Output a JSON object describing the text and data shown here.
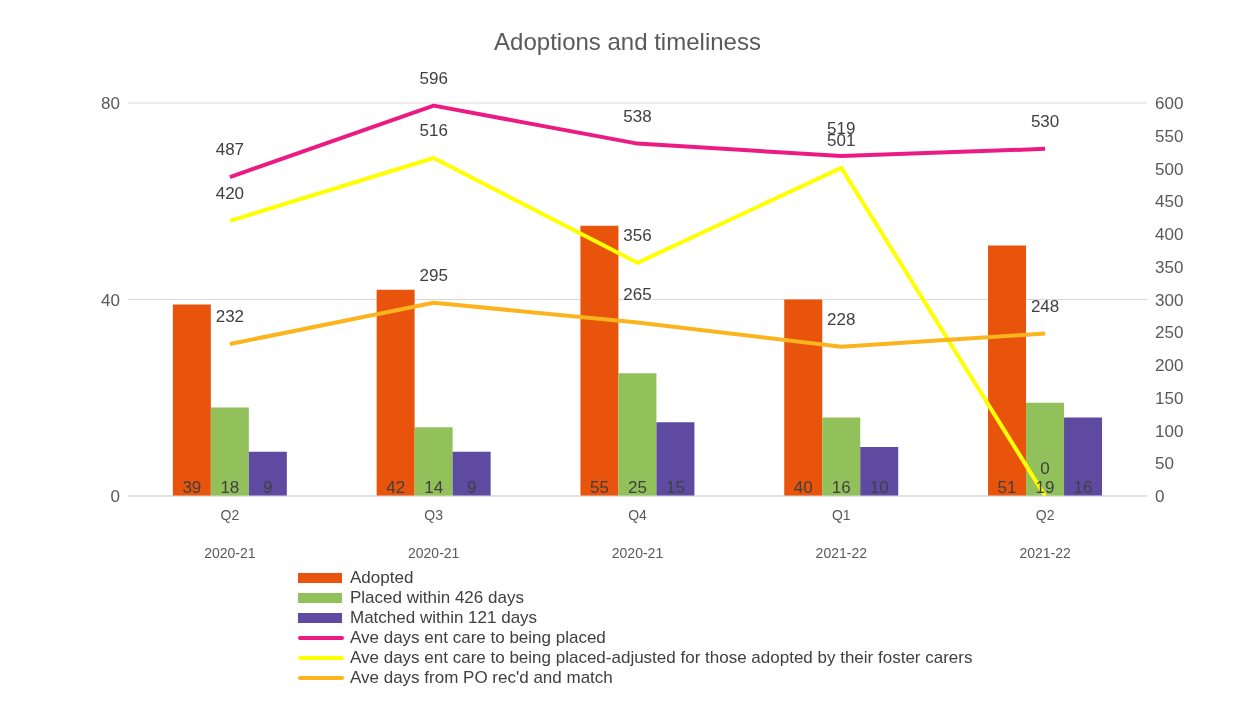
{
  "chart_data": {
    "type": "bar",
    "title": "Adoptions and timeliness",
    "categories": [
      "Q2 2020-21",
      "Q3 2020-21",
      "Q4 2020-21",
      "Q1 2021-22",
      "Q2 2021-22"
    ],
    "series": [
      {
        "name": "Adopted",
        "color": "#e8540c",
        "values": [
          39,
          42,
          55,
          40,
          51
        ]
      },
      {
        "name": "Placed within 426 days",
        "color": "#92c05a",
        "values": [
          18,
          14,
          25,
          16,
          19
        ]
      },
      {
        "name": "Matched within 121 days",
        "color": "#5e4aa0",
        "values": [
          9,
          9,
          15,
          10,
          16
        ]
      },
      {
        "name": "Ave days ent care to being placed",
        "type": "line",
        "axis": "y2",
        "color": "#ec1b84",
        "values": [
          487,
          596,
          538,
          519,
          530
        ]
      },
      {
        "name": "Ave days ent care to being placed-adjusted for those adopted by their foster carers",
        "type": "line",
        "axis": "y2",
        "color": "#ffff00",
        "values": [
          420,
          516,
          356,
          501,
          0
        ]
      },
      {
        "name": "Ave days from PO rec'd and match",
        "type": "line",
        "axis": "y2",
        "color": "#fbb41e",
        "values": [
          232,
          295,
          265,
          228,
          248
        ]
      }
    ],
    "ylim": [
      0,
      80
    ],
    "yticks": [
      0,
      40,
      80
    ],
    "y2lim": [
      0,
      600
    ],
    "y2ticks": [
      0,
      50,
      100,
      150,
      200,
      250,
      300,
      350,
      400,
      450,
      500,
      550,
      600
    ],
    "grid": "y",
    "legend": "bottom",
    "data_labels": true,
    "marker": "none",
    "line_style": "solid"
  }
}
